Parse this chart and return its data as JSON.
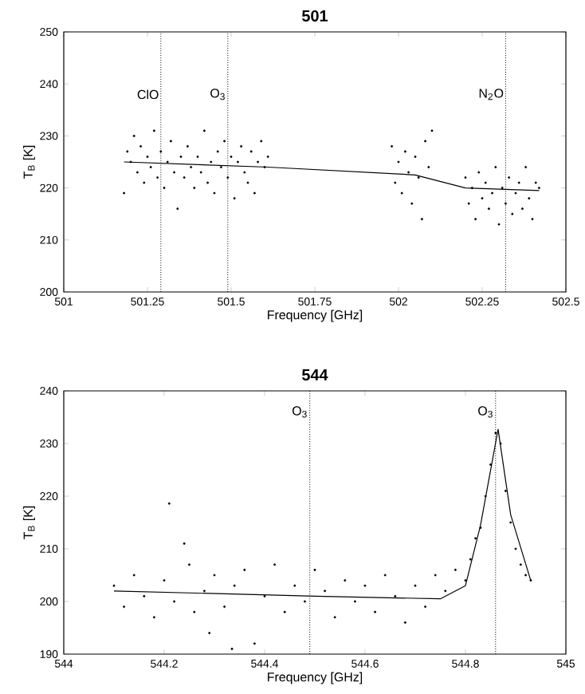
{
  "chart_data": [
    {
      "type": "scatter",
      "title": "501",
      "xlabel": "Frequency [GHz]",
      "ylabel": "T$_{B}$ [K]",
      "xlim": [
        501,
        502.5
      ],
      "ylim": [
        200,
        250
      ],
      "xticks": [
        501,
        501.25,
        501.5,
        501.75,
        502,
        502.25,
        502.5
      ],
      "yticks": [
        200,
        210,
        220,
        230,
        240,
        250
      ],
      "series": [
        {
          "color": "#000000",
          "marker": "circle",
          "x": [
            501.18,
            501.19,
            501.2,
            501.21,
            501.22,
            501.23,
            501.24,
            501.25,
            501.26,
            501.27,
            501.28,
            501.29,
            501.3,
            501.31,
            501.32,
            501.33,
            501.34,
            501.35,
            501.36,
            501.37,
            501.38,
            501.39,
            501.4,
            501.41,
            501.42,
            501.43,
            501.44,
            501.45,
            501.46,
            501.47,
            501.48,
            501.49,
            501.5,
            501.51,
            501.52,
            501.53,
            501.54,
            501.55,
            501.56,
            501.57,
            501.58,
            501.59,
            501.6,
            501.61,
            501.98,
            501.99,
            502.0,
            502.01,
            502.02,
            502.03,
            502.04,
            502.05,
            502.06,
            502.07,
            502.08,
            502.09,
            502.1,
            502.2,
            502.21,
            502.22,
            502.23,
            502.24,
            502.25,
            502.26,
            502.27,
            502.28,
            502.29,
            502.3,
            502.31,
            502.32,
            502.33,
            502.34,
            502.35,
            502.36,
            502.37,
            502.38,
            502.39,
            502.4,
            502.41,
            502.42
          ],
          "values": [
            219,
            227,
            225,
            230,
            223,
            228,
            221,
            226,
            224,
            231,
            222,
            227,
            220,
            225,
            229,
            223,
            216,
            226,
            222,
            228,
            224,
            220,
            226,
            223,
            231,
            221,
            225,
            219,
            227,
            224,
            229,
            222,
            226,
            218,
            225,
            228,
            223,
            221,
            227,
            219,
            225,
            229,
            224,
            226,
            228,
            221,
            225,
            219,
            227,
            223,
            217,
            226,
            222,
            214,
            229,
            224,
            231,
            222,
            217,
            220,
            214,
            223,
            218,
            221,
            216,
            219,
            224,
            213,
            220,
            217,
            222,
            215,
            219,
            221,
            216,
            224,
            218,
            214,
            221,
            220
          ]
        },
        {
          "type": "line",
          "color": "#000000",
          "marker": "none",
          "line_style": "solid",
          "x": [
            501.18,
            501.61,
            502.05,
            502.2,
            502.42
          ],
          "values": [
            225,
            224,
            222.5,
            220,
            219.5
          ]
        }
      ],
      "ref_lines": [
        {
          "axis": "x",
          "value": 501.29,
          "line_style": "dotted"
        },
        {
          "axis": "x",
          "value": 501.49,
          "line_style": "dotted"
        },
        {
          "axis": "x",
          "value": 502.32,
          "line_style": "dotted"
        }
      ],
      "annotations": [
        {
          "text": "ClO",
          "x": 501.29,
          "y": 238
        },
        {
          "text": "O$_{3}$",
          "x": 501.49,
          "y": 238
        },
        {
          "text": "N$_{2}$O",
          "x": 502.32,
          "y": 238
        }
      ]
    },
    {
      "type": "scatter",
      "title": "544",
      "xlabel": "Frequency [GHz]",
      "ylabel": "T$_{B}$ [K]",
      "xlim": [
        544,
        545
      ],
      "ylim": [
        190,
        240
      ],
      "xticks": [
        544,
        544.2,
        544.4,
        544.6,
        544.8,
        545
      ],
      "yticks": [
        190,
        200,
        210,
        220,
        230,
        240
      ],
      "series": [
        {
          "color": "#000000",
          "marker": "circle",
          "x": [
            544.1,
            544.12,
            544.14,
            544.16,
            544.18,
            544.2,
            544.21,
            544.22,
            544.24,
            544.25,
            544.26,
            544.28,
            544.29,
            544.3,
            544.32,
            544.335,
            544.34,
            544.36,
            544.38,
            544.4,
            544.42,
            544.44,
            544.46,
            544.48,
            544.5,
            544.52,
            544.54,
            544.56,
            544.58,
            544.6,
            544.62,
            544.64,
            544.66,
            544.68,
            544.7,
            544.72,
            544.74,
            544.76,
            544.78,
            544.8,
            544.81,
            544.82,
            544.83,
            544.84,
            544.85,
            544.86,
            544.87,
            544.88,
            544.89,
            544.9,
            544.91,
            544.92,
            544.93
          ],
          "values": [
            203,
            199,
            205,
            201,
            197,
            204,
            218.6,
            200,
            211,
            207,
            198,
            202,
            194,
            205,
            199,
            191,
            203,
            206,
            192,
            201,
            207,
            198,
            203,
            200,
            206,
            202,
            197,
            204,
            200,
            203,
            198,
            205,
            201,
            196,
            203,
            199,
            205,
            202,
            206,
            204,
            208,
            212,
            214,
            220,
            226,
            232,
            230,
            221,
            215,
            210,
            207,
            205,
            204
          ]
        },
        {
          "type": "line",
          "color": "#000000",
          "marker": "none",
          "line_style": "solid",
          "x": [
            544.1,
            544.5,
            544.75,
            544.8,
            544.83,
            544.865,
            544.89,
            544.93
          ],
          "values": [
            202,
            201,
            200.5,
            203,
            214.5,
            232.7,
            216.5,
            204
          ]
        }
      ],
      "ref_lines": [
        {
          "axis": "x",
          "value": 544.49,
          "line_style": "dotted"
        },
        {
          "axis": "x",
          "value": 544.86,
          "line_style": "dotted"
        }
      ],
      "annotations": [
        {
          "text": "O$_{3}$",
          "x": 544.49,
          "y": 236
        },
        {
          "text": "O$_{3}$",
          "x": 544.86,
          "y": 236
        }
      ]
    }
  ]
}
